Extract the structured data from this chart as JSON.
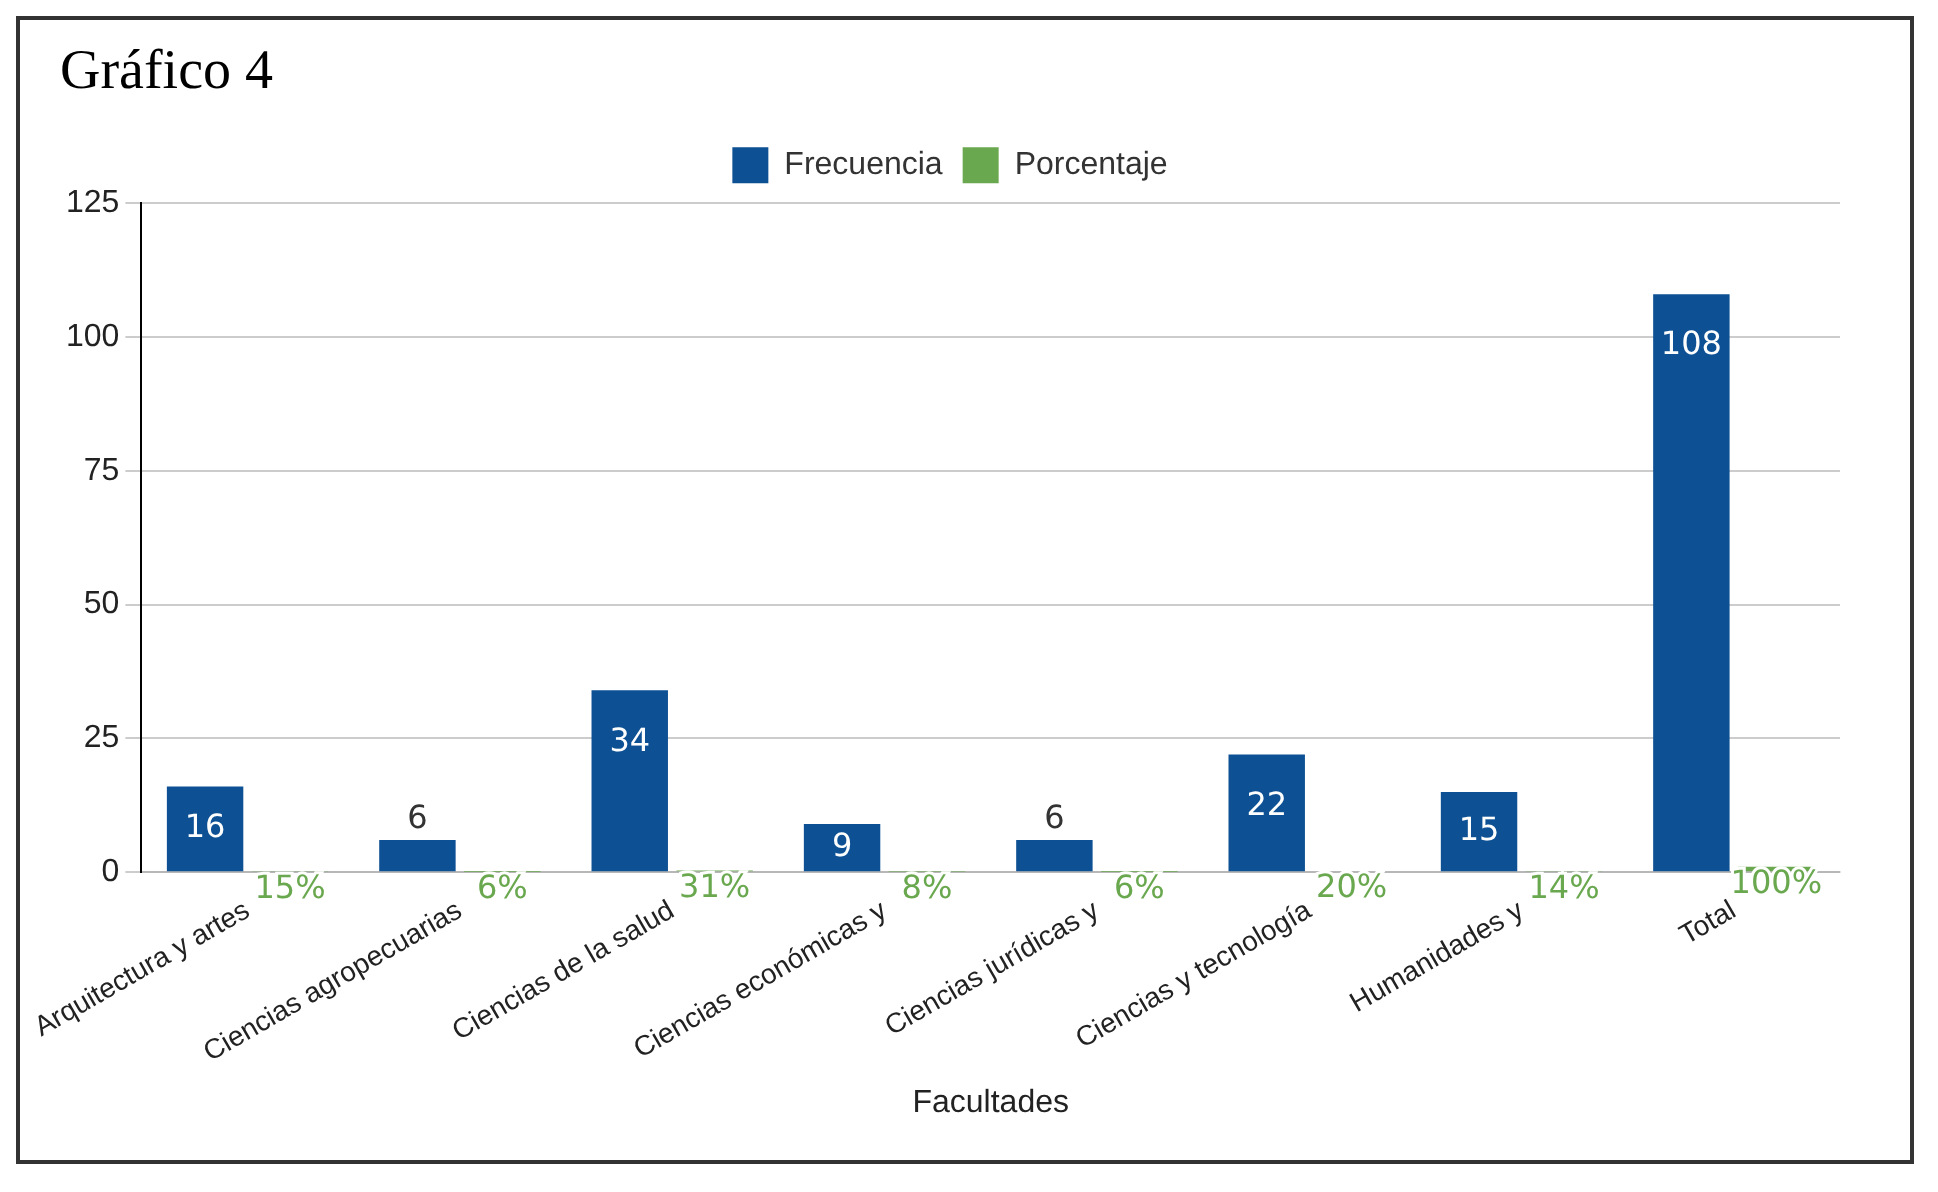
{
  "chart_data": {
    "type": "bar",
    "title": "Gráfico 4",
    "xlabel": "Facultades",
    "categories": [
      "Arquitectura y artes",
      "Ciencias agropecuarias",
      "Ciencias de la salud",
      "Ciencias económicas y",
      "Ciencias jurídicas y",
      "Ciencias y tecnología",
      "Humanidades y",
      "Total"
    ],
    "series": [
      {
        "name": "Frecuencia",
        "color": "#0d5093",
        "values": [
          16,
          6,
          34,
          9,
          6,
          22,
          15,
          108
        ],
        "value_labels": [
          "16",
          "6",
          "34",
          "9",
          "6",
          "22",
          "15",
          "108"
        ]
      },
      {
        "name": "Porcentaje",
        "color": "#6aa84f",
        "values": [
          0.15,
          0.06,
          0.31,
          0.08,
          0.06,
          0.2,
          0.14,
          1
        ],
        "value_labels": [
          "15%",
          "6%",
          "31%",
          "8%",
          "6%",
          "20%",
          "14%",
          "100%"
        ]
      }
    ],
    "ylim": [
      0,
      125
    ],
    "yticks": [
      0,
      25,
      50,
      75,
      100,
      125
    ],
    "grid": "y",
    "legend": "top"
  }
}
